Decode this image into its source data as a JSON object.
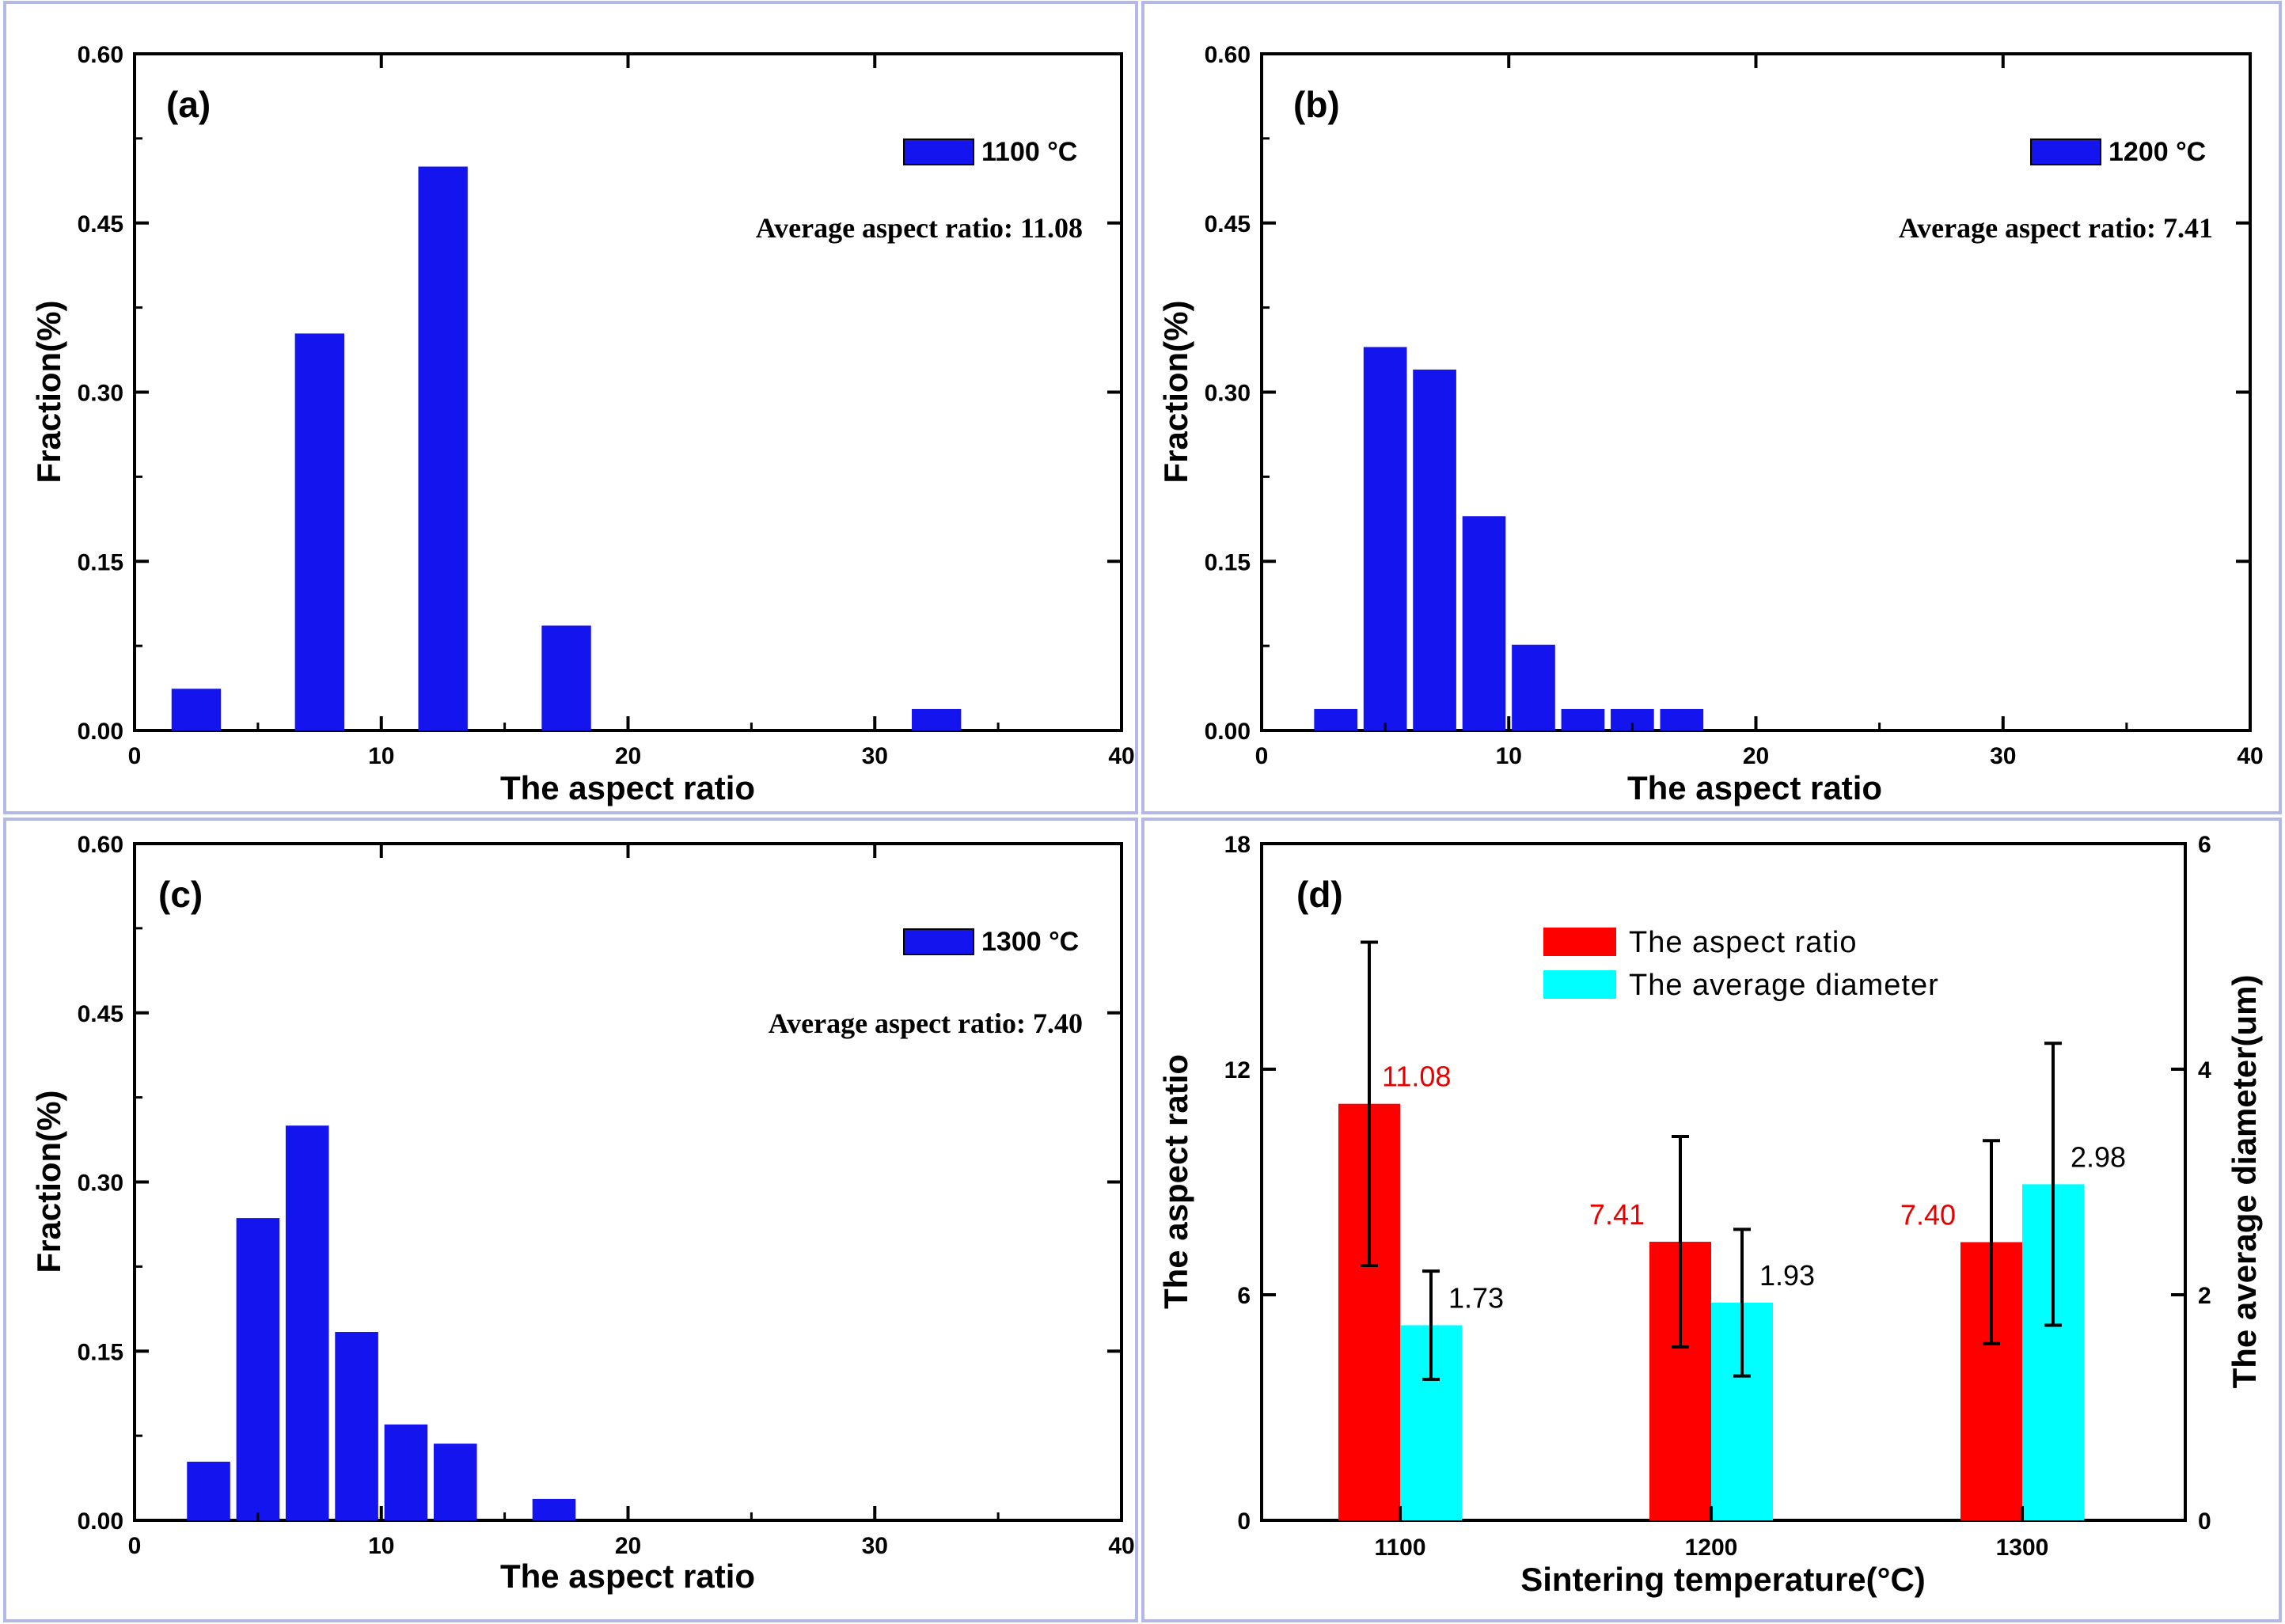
{
  "colors": {
    "bar": "#1414ee",
    "aspect_bar": "#ff0000",
    "diameter_bar": "#00ffff",
    "aspect_label": "#e60000",
    "frame": "#b4b8e6"
  },
  "chart_data": [
    {
      "type": "bar",
      "panel_label": "(a)",
      "legend": "1100 °C",
      "annotation": "Average aspect ratio: 11.08",
      "xlabel": "The aspect ratio",
      "ylabel": "Fraction(%)",
      "xlim": [
        0,
        40
      ],
      "ylim": [
        0,
        0.6
      ],
      "xticks": [
        "0",
        "10",
        "20",
        "30",
        "40"
      ],
      "yticks": [
        "0.00",
        "0.15",
        "0.30",
        "0.45",
        "0.60"
      ],
      "bin_width": 2,
      "x": [
        2.5,
        7.5,
        12.5,
        17.5,
        32.5
      ],
      "values": [
        0.037,
        0.352,
        0.5,
        0.093,
        0.019
      ]
    },
    {
      "type": "bar",
      "panel_label": "(b)",
      "legend": "1200 °C",
      "annotation": "Average aspect ratio: 7.41",
      "xlabel": "The aspect ratio",
      "ylabel": "Fraction(%)",
      "xlim": [
        0,
        40
      ],
      "ylim": [
        0,
        0.6
      ],
      "xticks": [
        "0",
        "10",
        "20",
        "30",
        "40"
      ],
      "yticks": [
        "0.00",
        "0.15",
        "0.30",
        "0.45",
        "0.60"
      ],
      "bin_width": 1.75,
      "x": [
        3,
        5,
        7,
        9,
        11,
        13,
        15,
        17
      ],
      "values": [
        0.019,
        0.34,
        0.32,
        0.19,
        0.076,
        0.019,
        0.019,
        0.019
      ]
    },
    {
      "type": "bar",
      "panel_label": "(c)",
      "legend": "1300 °C",
      "annotation": "Average aspect ratio: 7.40",
      "xlabel": "The aspect ratio",
      "ylabel": "Fraction(%)",
      "xlim": [
        0,
        40
      ],
      "ylim": [
        0,
        0.6
      ],
      "xticks": [
        "0",
        "10",
        "20",
        "30",
        "40"
      ],
      "yticks": [
        "0.00",
        "0.15",
        "0.30",
        "0.45",
        "0.60"
      ],
      "bin_width": 1.75,
      "x": [
        3,
        5,
        7,
        9,
        11,
        13,
        17
      ],
      "values": [
        0.052,
        0.268,
        0.35,
        0.167,
        0.085,
        0.068,
        0.019
      ]
    },
    {
      "type": "bar",
      "panel_label": "(d)",
      "xlabel": "Sintering temperature(°C)",
      "ylabel": "The aspect ratio",
      "ylabel_right": "The average diameter(um)",
      "categories": [
        "1100",
        "1200",
        "1300"
      ],
      "ylim": [
        0,
        18
      ],
      "ylim_right": [
        0,
        6
      ],
      "yticks": [
        "0",
        "6",
        "12",
        "18"
      ],
      "yticks_right": [
        "0",
        "2",
        "4",
        "6"
      ],
      "series": [
        {
          "name": "The aspect ratio",
          "axis": "left",
          "values": [
            11.08,
            7.41,
            7.4
          ],
          "labels": [
            "11.08",
            "7.41",
            "7.40"
          ],
          "error": [
            4.3,
            2.8,
            2.7
          ]
        },
        {
          "name": "The average diameter",
          "axis": "right",
          "values": [
            1.73,
            1.93,
            2.98
          ],
          "labels": [
            "1.73",
            "1.93",
            "2.98"
          ],
          "error": [
            0.48,
            0.65,
            1.25
          ]
        }
      ]
    }
  ]
}
